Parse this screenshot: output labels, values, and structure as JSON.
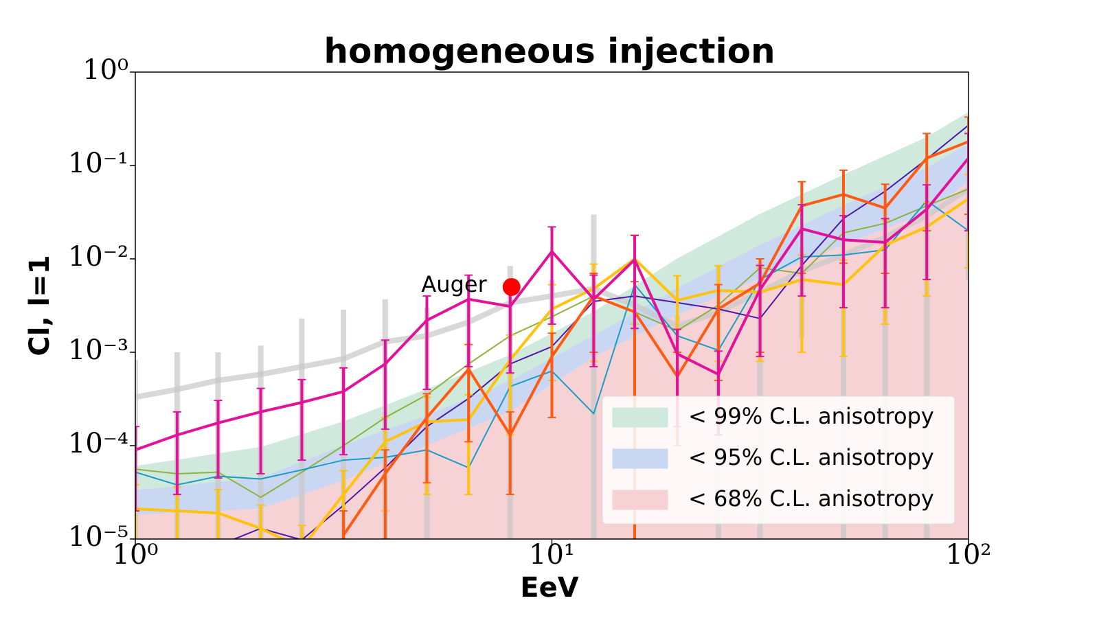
{
  "chart_data": {
    "type": "line",
    "title": "homogeneous injection",
    "x_label": "EeV",
    "y_label": "Cl, l=1",
    "log_x": true,
    "log_y": true,
    "legend": "lower right",
    "xlim": [
      1,
      100
    ],
    "ylim": [
      1e-05,
      1
    ],
    "xticks": [
      {
        "value": 1,
        "label": "10⁰"
      },
      {
        "value": 10,
        "label": "10¹"
      },
      {
        "value": 100,
        "label": "10²"
      }
    ],
    "yticks": [
      {
        "value": 1e-05,
        "label": "10⁻⁵"
      },
      {
        "value": 0.0001,
        "label": "10⁻⁴"
      },
      {
        "value": 0.001,
        "label": "10⁻³"
      },
      {
        "value": 0.01,
        "label": "10⁻²"
      },
      {
        "value": 0.1,
        "label": "10⁻¹"
      },
      {
        "value": 1,
        "label": "10⁰"
      }
    ],
    "bands": [
      {
        "name": "< 99% C.L. anisotropy",
        "color": "#cfe9dc",
        "x": [
          1,
          2,
          3.16,
          5.01,
          7.94,
          12.6,
          20,
          31.6,
          50.1,
          79.4,
          100
        ],
        "values": [
          6e-05,
          9.6e-05,
          0.00018,
          0.0004,
          0.00093,
          0.0027,
          0.01,
          0.03,
          0.079,
          0.2,
          0.37
        ]
      },
      {
        "name": "< 95% C.L. anisotropy",
        "color": "#cad7f3",
        "x": [
          1,
          2,
          3.16,
          5.01,
          7.94,
          12.6,
          20,
          31.6,
          50.1,
          79.4,
          100
        ],
        "values": [
          3.3e-05,
          4.5e-05,
          0.0001,
          0.00021,
          0.00049,
          0.0015,
          0.0048,
          0.014,
          0.037,
          0.094,
          0.17
        ]
      },
      {
        "name": "< 68% C.L. anisotropy",
        "color": "#f7d2d5",
        "x": [
          1,
          2,
          3.16,
          5.01,
          7.94,
          12.6,
          20,
          31.6,
          50.1,
          79.4,
          100
        ],
        "values": [
          1.8e-05,
          2.1e-05,
          4.2e-05,
          0.0001,
          0.00023,
          0.00088,
          0.0025,
          0.0062,
          0.014,
          0.031,
          0.067
        ]
      }
    ],
    "x": [
      1,
      1.26,
      1.58,
      2,
      2.51,
      3.16,
      3.98,
      5.01,
      6.31,
      7.94,
      10,
      12.6,
      15.8,
      20,
      25.1,
      31.6,
      39.8,
      50.1,
      63.1,
      79.4,
      100
    ],
    "series": [
      {
        "color": "#c8c8c8",
        "width": 8,
        "values": [
          0.00033,
          0.0004,
          0.0005,
          0.00058,
          0.0007,
          0.00085,
          0.0013,
          0.0015,
          0.0021,
          0.0034,
          0.004,
          0.0048,
          0.0032,
          0.0019,
          0.0027,
          0.0044,
          0.0074,
          0.011,
          0.017,
          0.029,
          0.056
        ],
        "errors": [
          0.0005,
          0.0006,
          0.0005,
          0.0006,
          0.0016,
          0.002,
          0.0024,
          0.0015,
          0.0015,
          0.005,
          0.002,
          0.025,
          0.0015,
          0.0006,
          0.006,
          0.005,
          0.006,
          0.015,
          0.02,
          0.03,
          0.05
        ]
      },
      {
        "color": "#8cb43c",
        "width": 2,
        "values": [
          5.6e-05,
          5e-05,
          5.2e-05,
          2.8e-05,
          5.2e-05,
          0.0001,
          0.0002,
          0.00035,
          0.00075,
          0.0015,
          0.0024,
          0.004,
          0.0027,
          0.0017,
          0.0032,
          0.008,
          0.007,
          0.019,
          0.024,
          0.037,
          0.056
        ]
      },
      {
        "color": "#1a9cc4",
        "width": 2,
        "values": [
          5.2e-05,
          3.8e-05,
          4.7e-05,
          4.4e-05,
          5.5e-05,
          7e-05,
          7.5e-05,
          9e-05,
          5.8e-05,
          0.00043,
          0.00063,
          0.00022,
          0.0053,
          0.0015,
          0.00105,
          0.006,
          0.0105,
          0.011,
          0.0125,
          0.042,
          0.02
        ]
      },
      {
        "color": "#4b1aa8",
        "width": 2,
        "values": [
          6e-06,
          7e-06,
          8.5e-06,
          1.3e-05,
          9.8e-06,
          2.3e-05,
          5.8e-05,
          0.00016,
          0.00032,
          0.00075,
          0.00115,
          0.0035,
          0.004,
          0.0034,
          0.0029,
          0.0023,
          0.0085,
          0.027,
          0.053,
          0.117,
          0.27
        ]
      },
      {
        "color": "#ffc20e",
        "width": 4,
        "values": [
          2.1e-05,
          2e-05,
          1.9e-05,
          1.3e-05,
          8e-06,
          3e-05,
          0.00011,
          0.00018,
          0.00019,
          0.00083,
          0.0029,
          0.0048,
          0.01,
          0.0036,
          0.0046,
          0.0044,
          0.006,
          0.0053,
          0.014,
          0.022,
          0.044
        ],
        "errors": [
          1.7e-05,
          1.6e-05,
          1.5e-05,
          1e-05,
          6e-06,
          2.4e-05,
          9e-05,
          0.00015,
          0.00016,
          0.0007,
          0.0024,
          0.004,
          0.008,
          0.003,
          0.0038,
          0.0036,
          0.005,
          0.0044,
          0.012,
          0.018,
          0.036
        ]
      },
      {
        "color": "#ff5a14",
        "width": 4,
        "values": [
          null,
          null,
          null,
          null,
          null,
          1.1e-05,
          5e-05,
          0.0002,
          0.00066,
          0.00013,
          0.0009,
          0.004,
          0.0027,
          0.00055,
          0.0029,
          0.0055,
          0.037,
          0.049,
          0.035,
          0.12,
          0.18
        ],
        "errors": [
          null,
          null,
          null,
          null,
          null,
          9e-06,
          4e-05,
          0.00016,
          0.00055,
          0.0001,
          0.0007,
          0.003,
          0.003,
          0.00045,
          0.0024,
          0.0045,
          0.03,
          0.04,
          0.028,
          0.1,
          0.15
        ]
      },
      {
        "color": "#e0139a",
        "width": 4,
        "values": [
          9e-05,
          0.00013,
          0.000175,
          0.00023,
          0.00029,
          0.00038,
          0.00075,
          0.0022,
          0.0037,
          0.0031,
          0.012,
          0.0037,
          0.0098,
          0.00096,
          0.00058,
          0.0047,
          0.021,
          0.016,
          0.015,
          0.034,
          0.12
        ],
        "errors": [
          7e-05,
          0.0001,
          0.00013,
          0.00018,
          0.00022,
          0.0003,
          0.0006,
          0.0018,
          0.003,
          0.0025,
          0.01,
          0.003,
          0.008,
          0.0008,
          0.00045,
          0.0038,
          0.017,
          0.013,
          0.012,
          0.028,
          0.1
        ]
      }
    ],
    "annotations": [
      {
        "text": "Auger",
        "x": 8,
        "y": 0.005,
        "color": "#ff0000"
      }
    ]
  }
}
